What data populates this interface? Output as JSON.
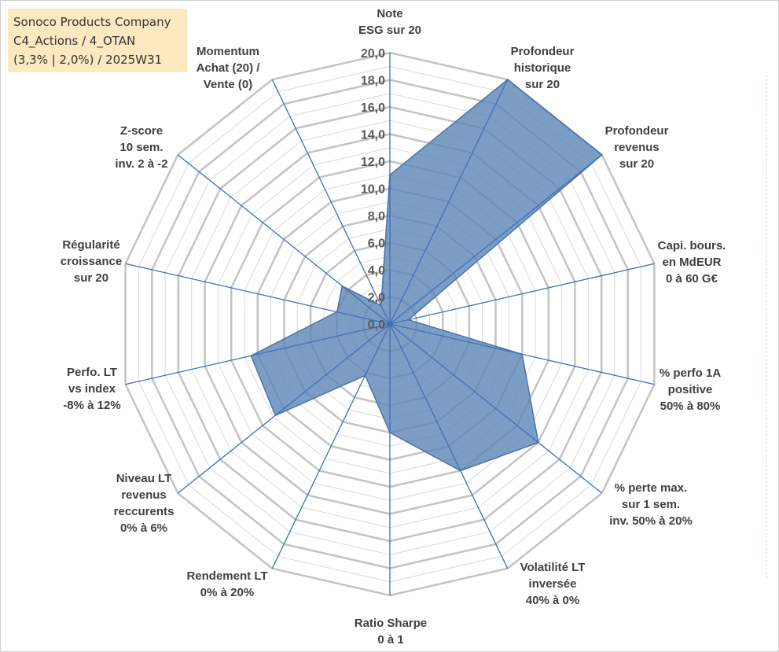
{
  "company": {
    "lines": [
      "Sonoco Products Company",
      "C4_Actions / 4_OTAN",
      "(3,3% | 2,0%) / 2025W31"
    ]
  },
  "chart_data": {
    "type": "radar",
    "title": "",
    "rlim": [
      0,
      20
    ],
    "ticks": [
      "0,0",
      "2,0",
      "4,0",
      "6,0",
      "8,0",
      "10,0",
      "12,0",
      "14,0",
      "16,0",
      "18,0",
      "20,0"
    ],
    "grid": true,
    "axes": [
      {
        "label": [
          "Note",
          "ESG sur 20"
        ],
        "value": 11.0
      },
      {
        "label": [
          "Profondeur",
          "historique",
          "sur 20"
        ],
        "value": 20.0
      },
      {
        "label": [
          "Profondeur",
          "revenus",
          "sur 20"
        ],
        "value": 20.0
      },
      {
        "label": [
          "Capi. bours.",
          "en MdEUR",
          "0 à 60 G€"
        ],
        "value": 1.4
      },
      {
        "label": [
          "% perfo 1A",
          "positive",
          "50% à 80%"
        ],
        "value": 10.0
      },
      {
        "label": [
          "% perte max.",
          "sur 1 sem.",
          "inv. 50% à 20%"
        ],
        "value": 14.0
      },
      {
        "label": [
          "Volatilité LT",
          "inversée",
          "40% à 0%"
        ],
        "value": 12.0
      },
      {
        "label": [
          "Ratio Sharpe",
          "0 à 1"
        ],
        "value": 8.0
      },
      {
        "label": [
          "Rendement LT",
          "0% à 20%"
        ],
        "value": 4.2
      },
      {
        "label": [
          "Niveau LT",
          "revenus",
          "reccurents",
          "0% à 6%"
        ],
        "value": 10.8
      },
      {
        "label": [
          "Perfo. LT",
          "vs index",
          "-8% à 12%"
        ],
        "value": 10.5
      },
      {
        "label": [
          "Régularité",
          "croissance",
          "sur 20"
        ],
        "value": 4.0
      },
      {
        "label": [
          "Z-score",
          "10 sem.",
          "inv. 2 à -2"
        ],
        "value": 4.5
      },
      {
        "label": [
          "Momentum",
          "Achat (20) /",
          "Vente (0)"
        ],
        "value": 1.5
      }
    ],
    "series": [
      {
        "color": "#5b84b5"
      }
    ]
  }
}
